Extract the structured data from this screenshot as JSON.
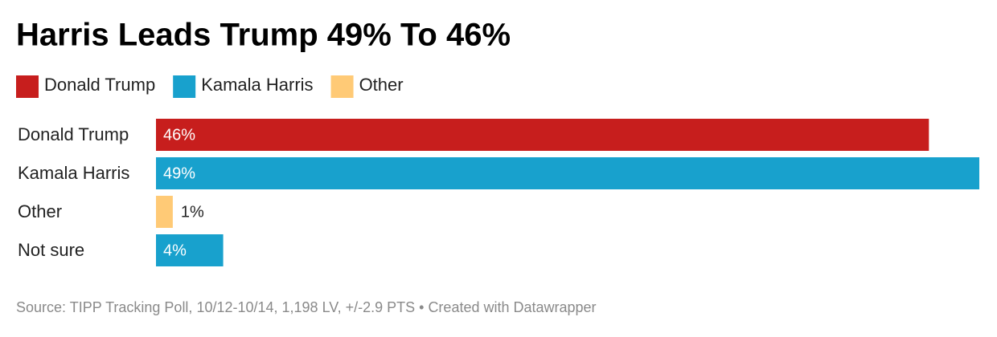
{
  "chart_data": {
    "type": "bar",
    "orientation": "horizontal",
    "title": "Harris Leads Trump 49% To 46%",
    "legend": [
      {
        "name": "Donald Trump",
        "color": "#c71e1d"
      },
      {
        "name": "Kamala Harris",
        "color": "#18a1cd"
      },
      {
        "name": "Other",
        "color": "#ffca76"
      }
    ],
    "categories": [
      "Donald Trump",
      "Kamala Harris",
      "Other",
      "Not sure"
    ],
    "values": [
      46,
      49,
      1,
      4
    ],
    "value_labels": [
      "46%",
      "49%",
      "1%",
      "4%"
    ],
    "colors": [
      "#c71e1d",
      "#18a1cd",
      "#ffca76",
      "#18a1cd"
    ],
    "source": "Source: TIPP Tracking Poll, 10/12-10/14, 1,198 LV, +/-2.9 PTS • Created with Datawrapper"
  }
}
